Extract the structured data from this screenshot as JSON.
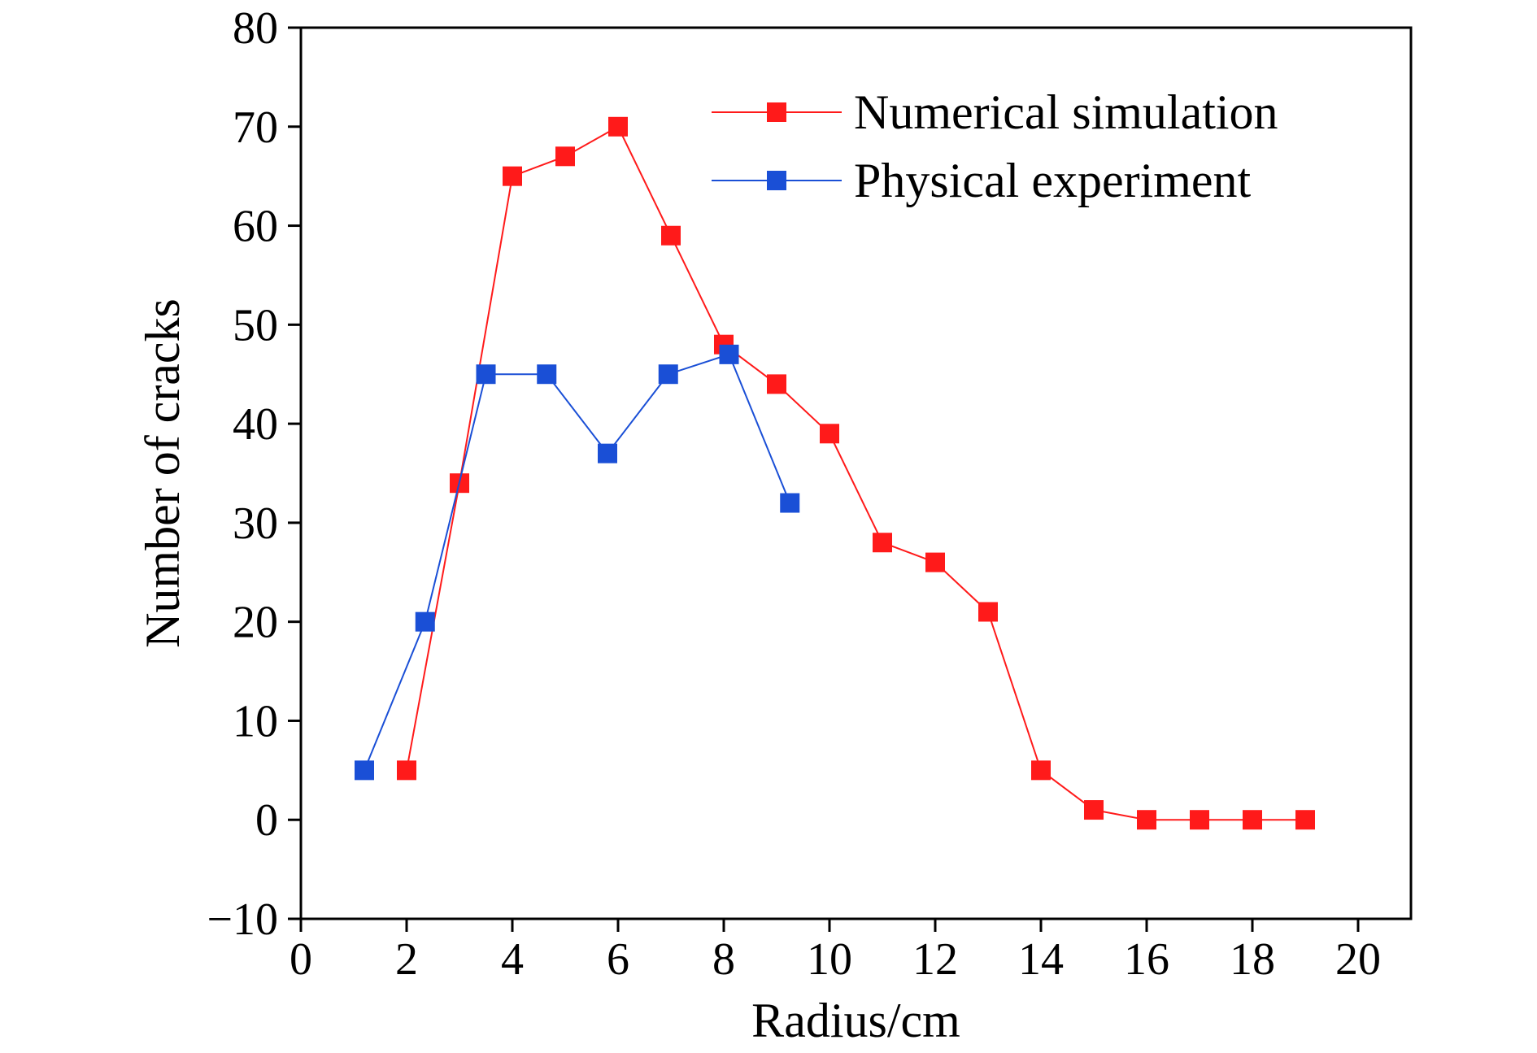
{
  "chart_data": {
    "type": "line",
    "title": "",
    "xlabel": "Radius/cm",
    "ylabel": "Number of cracks",
    "xlim": [
      0,
      21
    ],
    "ylim": [
      -10,
      80
    ],
    "x_ticks": [
      0,
      2,
      4,
      6,
      8,
      10,
      12,
      14,
      16,
      18,
      20
    ],
    "y_ticks": [
      -10,
      0,
      10,
      20,
      30,
      40,
      50,
      60,
      70,
      80
    ],
    "x_tick_labels": [
      "0",
      "2",
      "4",
      "6",
      "8",
      "10",
      "12",
      "14",
      "16",
      "18",
      "20"
    ],
    "y_tick_labels": [
      "−10",
      "0",
      "10",
      "20",
      "30",
      "40",
      "50",
      "60",
      "70",
      "80"
    ],
    "grid": false,
    "legend_position": "top-right",
    "series": [
      {
        "name": "Numerical simulation",
        "color": "#ff1a1a",
        "marker": "square",
        "x": [
          2,
          3,
          4,
          5,
          6,
          7,
          8,
          9,
          10,
          11,
          12,
          13,
          14,
          15,
          16,
          17,
          18,
          19
        ],
        "y": [
          5,
          34,
          65,
          67,
          70,
          59,
          48,
          44,
          39,
          28,
          26,
          21,
          5,
          1,
          0,
          0,
          0,
          0
        ]
      },
      {
        "name": "Physical experiment",
        "color": "#1a4fd6",
        "marker": "square",
        "x": [
          1.2,
          2.35,
          3.5,
          4.65,
          5.8,
          6.95,
          8.1,
          9.25
        ],
        "y": [
          5,
          20,
          45,
          45,
          37,
          45,
          47,
          32
        ]
      }
    ]
  }
}
